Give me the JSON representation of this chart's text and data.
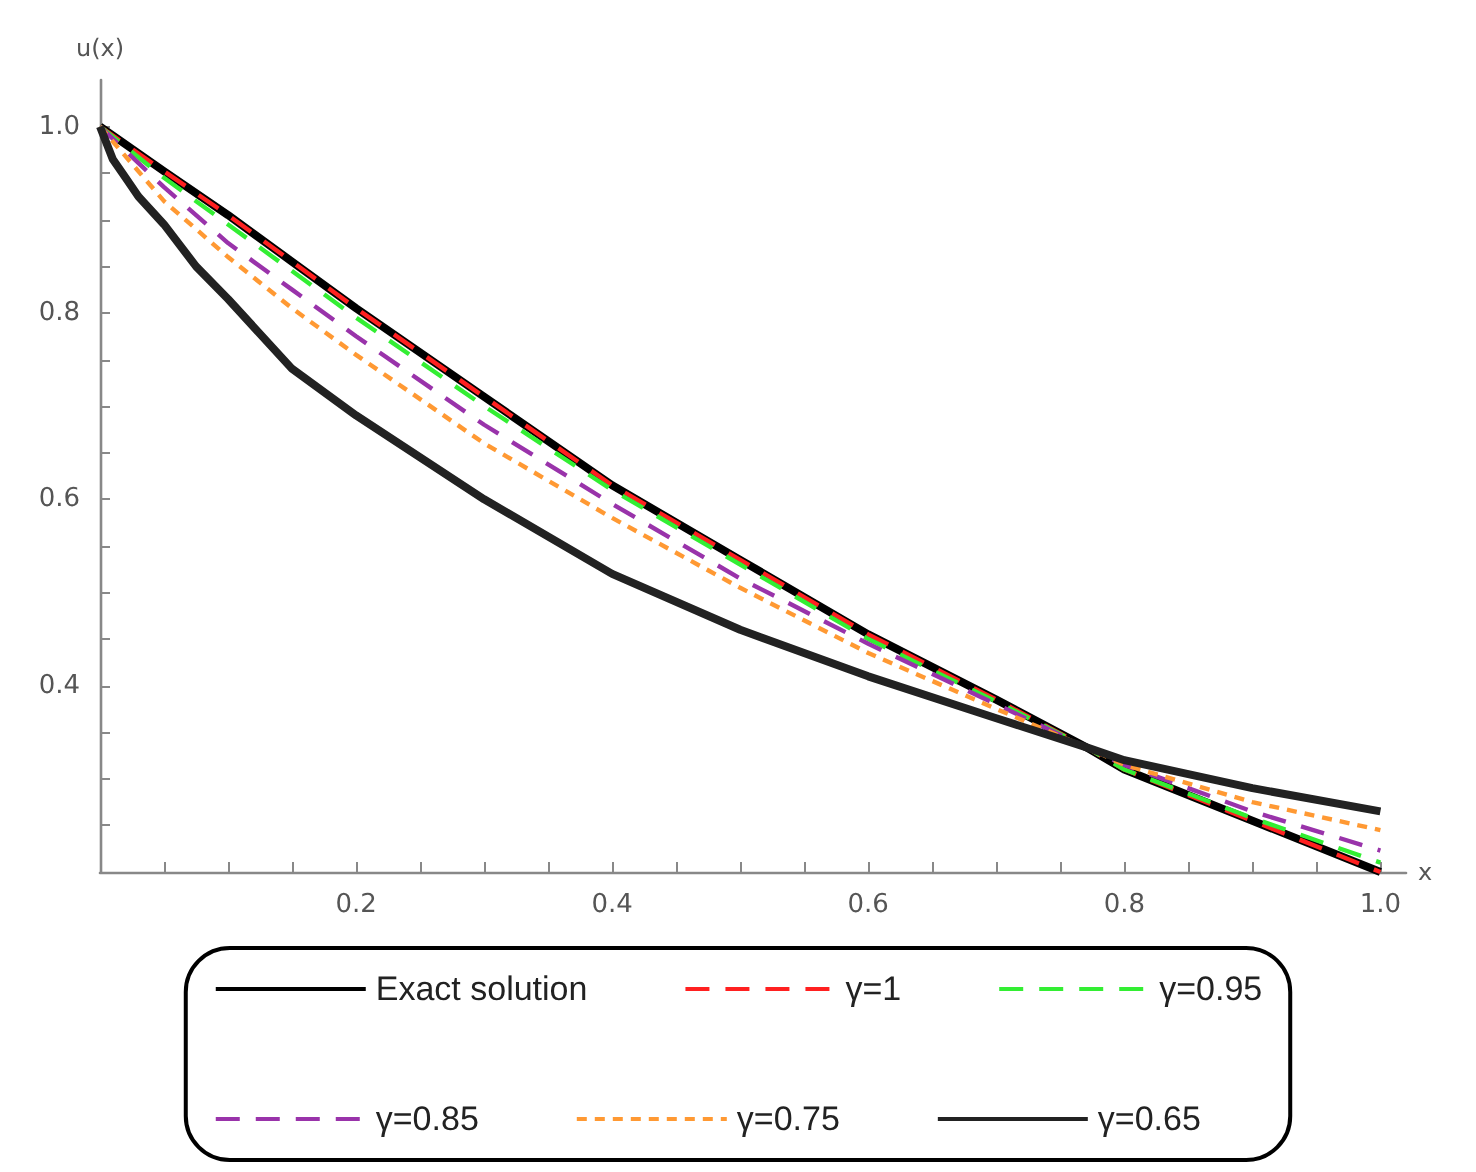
{
  "chart_data": {
    "type": "line",
    "xlabel": "x",
    "ylabel": "u(x)",
    "x": [
      0,
      0.05,
      0.1,
      0.15,
      0.2,
      0.3,
      0.4,
      0.5,
      0.6,
      0.7,
      0.77,
      0.8,
      0.9,
      1
    ],
    "series": [
      {
        "name": "Exact solution",
        "color": "#000000",
        "line_style": "solid",
        "values": [
          1,
          0.952,
          0.905,
          0.855,
          0.805,
          0.71,
          0.615,
          0.535,
          0.455,
          0.385,
          0.334,
          0.31,
          0.255,
          0.2
        ]
      },
      {
        "name": "γ=1",
        "color": "#ff2020",
        "line_style": "dashed",
        "values": [
          1,
          0.952,
          0.905,
          0.855,
          0.805,
          0.71,
          0.615,
          0.535,
          0.455,
          0.385,
          0.334,
          0.31,
          0.255,
          0.2
        ]
      },
      {
        "name": "γ=0.95",
        "color": "#33ee33",
        "line_style": "dashed",
        "values": [
          1,
          0.945,
          0.895,
          0.845,
          0.795,
          0.7,
          0.61,
          0.53,
          0.45,
          0.383,
          0.334,
          0.31,
          0.258,
          0.21
        ]
      },
      {
        "name": "γ=0.85",
        "color": "#9933aa",
        "line_style": "dashed",
        "values": [
          1,
          0.935,
          0.875,
          0.825,
          0.775,
          0.68,
          0.595,
          0.515,
          0.445,
          0.38,
          0.334,
          0.315,
          0.265,
          0.223
        ]
      },
      {
        "name": "γ=0.75",
        "color": "#ff9933",
        "line_style": "dashed",
        "values": [
          1,
          0.92,
          0.86,
          0.805,
          0.755,
          0.66,
          0.58,
          0.505,
          0.435,
          0.375,
          0.334,
          0.315,
          0.275,
          0.245
        ]
      },
      {
        "name": "γ=0.65",
        "color": "#222222",
        "line_style": "solid",
        "x": [
          0,
          0.01,
          0.02,
          0.03,
          0.05,
          0.075,
          0.1,
          0.15,
          0.2,
          0.25,
          0.3,
          0.4,
          0.5,
          0.6,
          0.7,
          0.77,
          0.8,
          0.9,
          1
        ],
        "values": [
          1,
          0.965,
          0.945,
          0.925,
          0.895,
          0.85,
          0.815,
          0.74,
          0.69,
          0.645,
          0.6,
          0.52,
          0.46,
          0.41,
          0.365,
          0.334,
          0.32,
          0.29,
          0.265
        ]
      }
    ],
    "xlim": [
      0,
      1.02
    ],
    "ylim": [
      0.2,
      1.05
    ],
    "xticks": [
      {
        "value": 0.05,
        "label": null
      },
      {
        "value": 0.1,
        "label": null
      },
      {
        "value": 0.15,
        "label": null
      },
      0.2,
      {
        "value": 0.25,
        "label": null
      },
      {
        "value": 0.3,
        "label": null
      },
      {
        "value": 0.35,
        "label": null
      },
      0.4,
      {
        "value": 0.45,
        "label": null
      },
      {
        "value": 0.5,
        "label": null
      },
      {
        "value": 0.55,
        "label": null
      },
      0.6,
      {
        "value": 0.65,
        "label": null
      },
      {
        "value": 0.7,
        "label": null
      },
      {
        "value": 0.75,
        "label": null
      },
      0.8,
      {
        "value": 0.85,
        "label": null
      },
      {
        "value": 0.9,
        "label": null
      },
      {
        "value": 0.95,
        "label": null
      },
      {
        "value": 1,
        "label": "1.0"
      }
    ],
    "yticks": [
      {
        "value": 0.25,
        "label": null
      },
      {
        "value": 0.3,
        "label": null
      },
      {
        "value": 0.35,
        "label": null
      },
      0.4,
      {
        "value": 0.45,
        "label": null
      },
      {
        "value": 0.5,
        "label": null
      },
      {
        "value": 0.55,
        "label": null
      },
      0.6,
      {
        "value": 0.65,
        "label": null
      },
      {
        "value": 0.7,
        "label": null
      },
      {
        "value": 0.75,
        "label": null
      },
      0.8,
      {
        "value": 0.85,
        "label": null
      },
      {
        "value": 0.9,
        "label": null
      },
      {
        "value": 0.95,
        "label": null
      },
      {
        "value": 1,
        "label": "1.0"
      }
    ],
    "grid": false,
    "legend": "bottom",
    "marker": "none"
  }
}
